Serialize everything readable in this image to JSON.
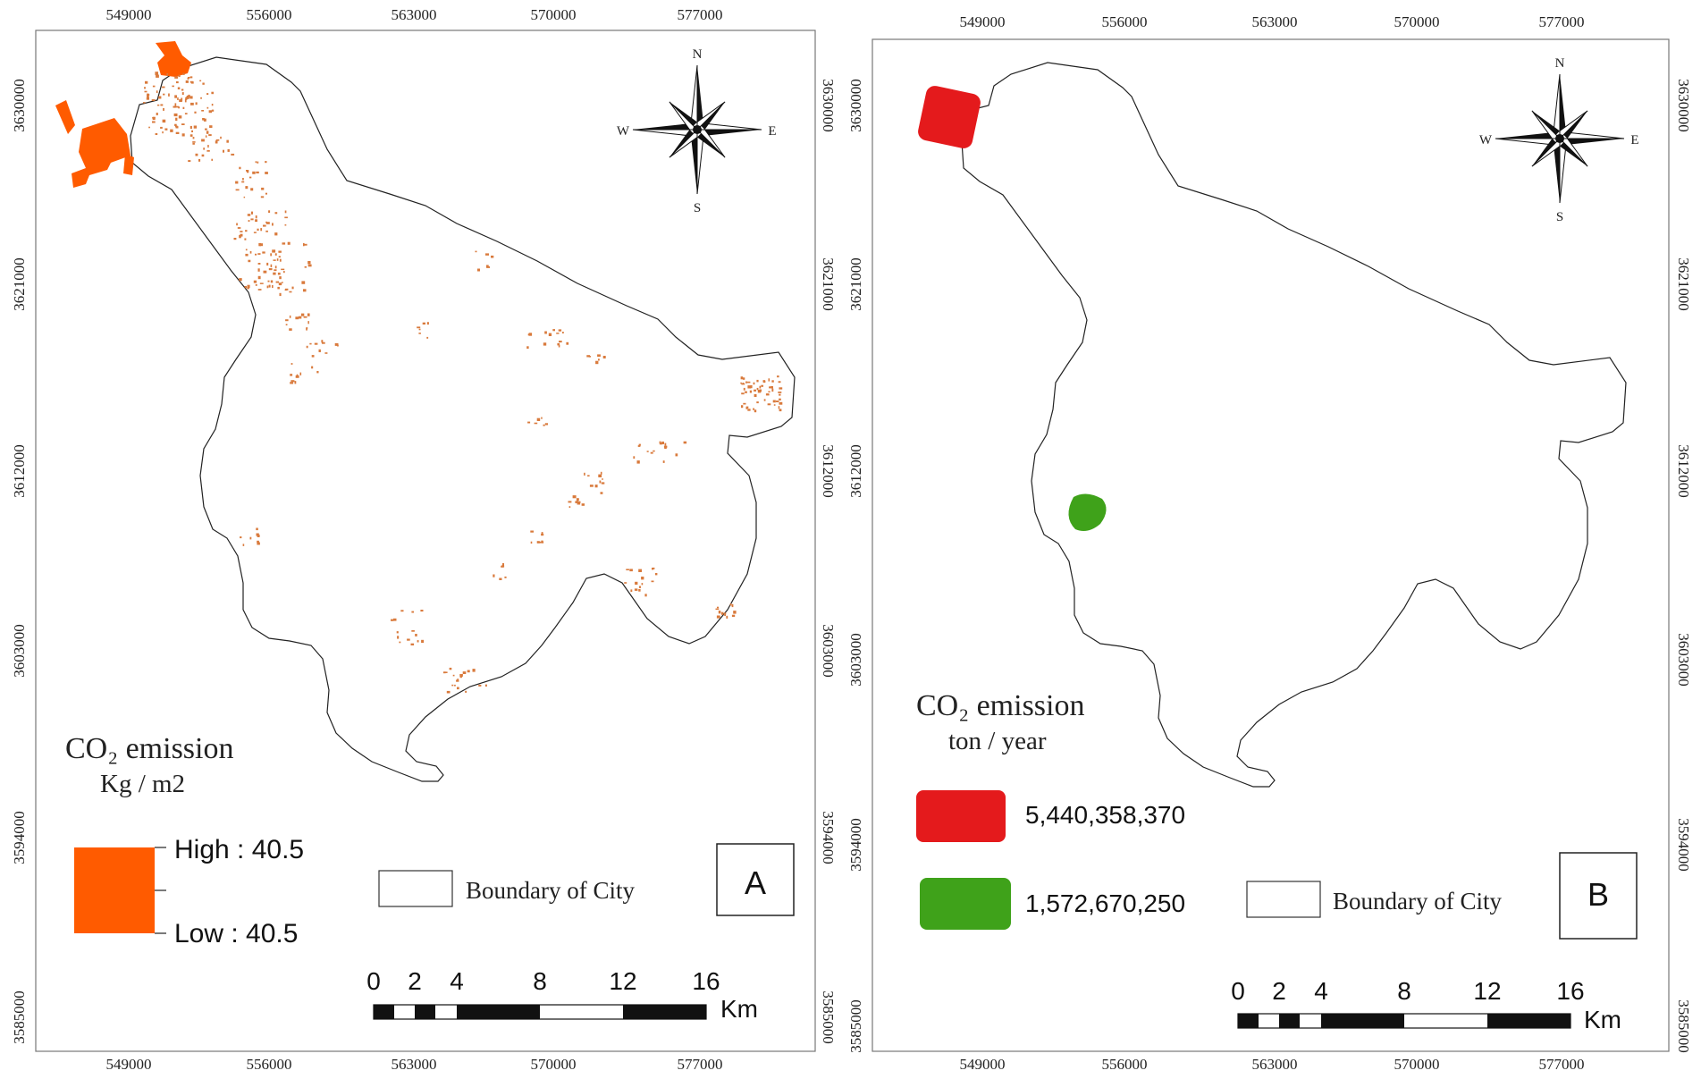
{
  "panel_a": {
    "letter": "A",
    "x_ticks": [
      "549000",
      "556000",
      "563000",
      "570000",
      "577000"
    ],
    "y_ticks": [
      "3630000",
      "3621000",
      "3612000",
      "3603000",
      "3594000",
      "3585000"
    ],
    "legend_title": "CO₂  emission",
    "legend_unit": "Kg / m2",
    "legend_high": "High : 40.5",
    "legend_low": "Low : 40.5",
    "boundary_label": "Boundary of City",
    "emission_color": "#ff5b00",
    "compass": {
      "n": "N",
      "s": "S",
      "e": "E",
      "w": "W"
    },
    "scale_labels": [
      "0",
      "2",
      "4",
      "8",
      "12",
      "16"
    ],
    "scale_unit": "Km"
  },
  "panel_b": {
    "letter": "B",
    "x_ticks": [
      "549000",
      "556000",
      "563000",
      "570000",
      "577000"
    ],
    "y_ticks": [
      "3630000",
      "3621000",
      "3612000",
      "3603000",
      "3594000",
      "3585000"
    ],
    "legend_title": "CO₂  emission",
    "legend_unit": "ton / year",
    "legend_items": [
      {
        "label": "5,440,358,370",
        "color": "#e41a1c"
      },
      {
        "label": "1,572,670,250",
        "color": "#3fa21a"
      }
    ],
    "boundary_label": "Boundary of City",
    "compass": {
      "n": "N",
      "s": "S",
      "e": "E",
      "w": "W"
    },
    "scale_labels": [
      "0",
      "2",
      "4",
      "8",
      "12",
      "16"
    ],
    "scale_unit": "Km"
  }
}
